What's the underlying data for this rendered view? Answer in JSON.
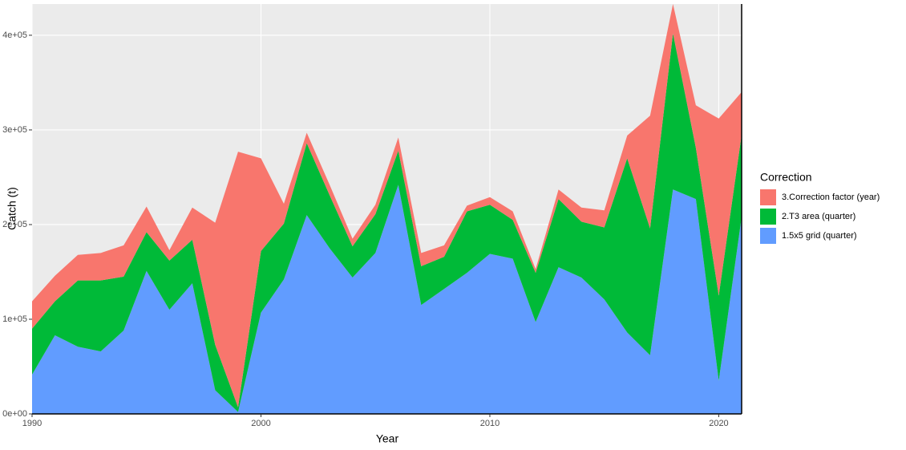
{
  "chart_data": {
    "type": "stacked_area",
    "x_label": "Year",
    "y_label": "Catch (t)",
    "legend_title": "Correction",
    "x": [
      1990,
      1991,
      1992,
      1993,
      1994,
      1995,
      1996,
      1997,
      1998,
      1999,
      2000,
      2001,
      2002,
      2003,
      2004,
      2005,
      2006,
      2007,
      2008,
      2009,
      2010,
      2011,
      2012,
      2013,
      2014,
      2015,
      2016,
      2017,
      2018,
      2019,
      2020,
      2021
    ],
    "series": [
      {
        "name": "1.5x5 grid (quarter)",
        "color": "#619cff",
        "values": [
          41500,
          83000,
          71000,
          66000,
          88000,
          151000,
          110000,
          138000,
          25000,
          2000,
          107000,
          142000,
          210000,
          175000,
          144000,
          170000,
          242000,
          115000,
          132000,
          149000,
          169000,
          164000,
          97000,
          155000,
          144000,
          121000,
          86000,
          62000,
          237000,
          227000,
          35000,
          208000
        ]
      },
      {
        "name": "2.T3 area (quarter)",
        "color": "#00ba38",
        "values": [
          48500,
          36000,
          70000,
          75000,
          57000,
          41000,
          52000,
          46000,
          48000,
          5000,
          65000,
          59000,
          76000,
          56000,
          33000,
          41000,
          36000,
          41000,
          34000,
          65000,
          52000,
          41000,
          52000,
          72000,
          59000,
          76000,
          184000,
          134000,
          165000,
          54000,
          90000,
          87000
        ]
      },
      {
        "name": "3.Correction factor (year)",
        "color": "#f8766d",
        "values": [
          29000,
          27000,
          27000,
          29000,
          33000,
          27000,
          11000,
          34000,
          129000,
          270000,
          98000,
          21000,
          11000,
          11000,
          8000,
          10000,
          14000,
          14000,
          12000,
          6000,
          8000,
          9000,
          4000,
          10000,
          15000,
          18000,
          24000,
          119000,
          31000,
          45000,
          187000,
          45000
        ]
      }
    ],
    "xlim": [
      1990,
      2021
    ],
    "xticks": [
      1990,
      2000,
      2010,
      2020
    ],
    "ylim": [
      0,
      433000
    ],
    "yticks": [
      {
        "value": 0,
        "label": "0e+00"
      },
      {
        "value": 100000,
        "label": "1e+05"
      },
      {
        "value": 200000,
        "label": "2e+05"
      },
      {
        "value": 300000,
        "label": "3e+05"
      },
      {
        "value": 400000,
        "label": "4e+05"
      }
    ],
    "grid": true,
    "legend_position": "right"
  }
}
